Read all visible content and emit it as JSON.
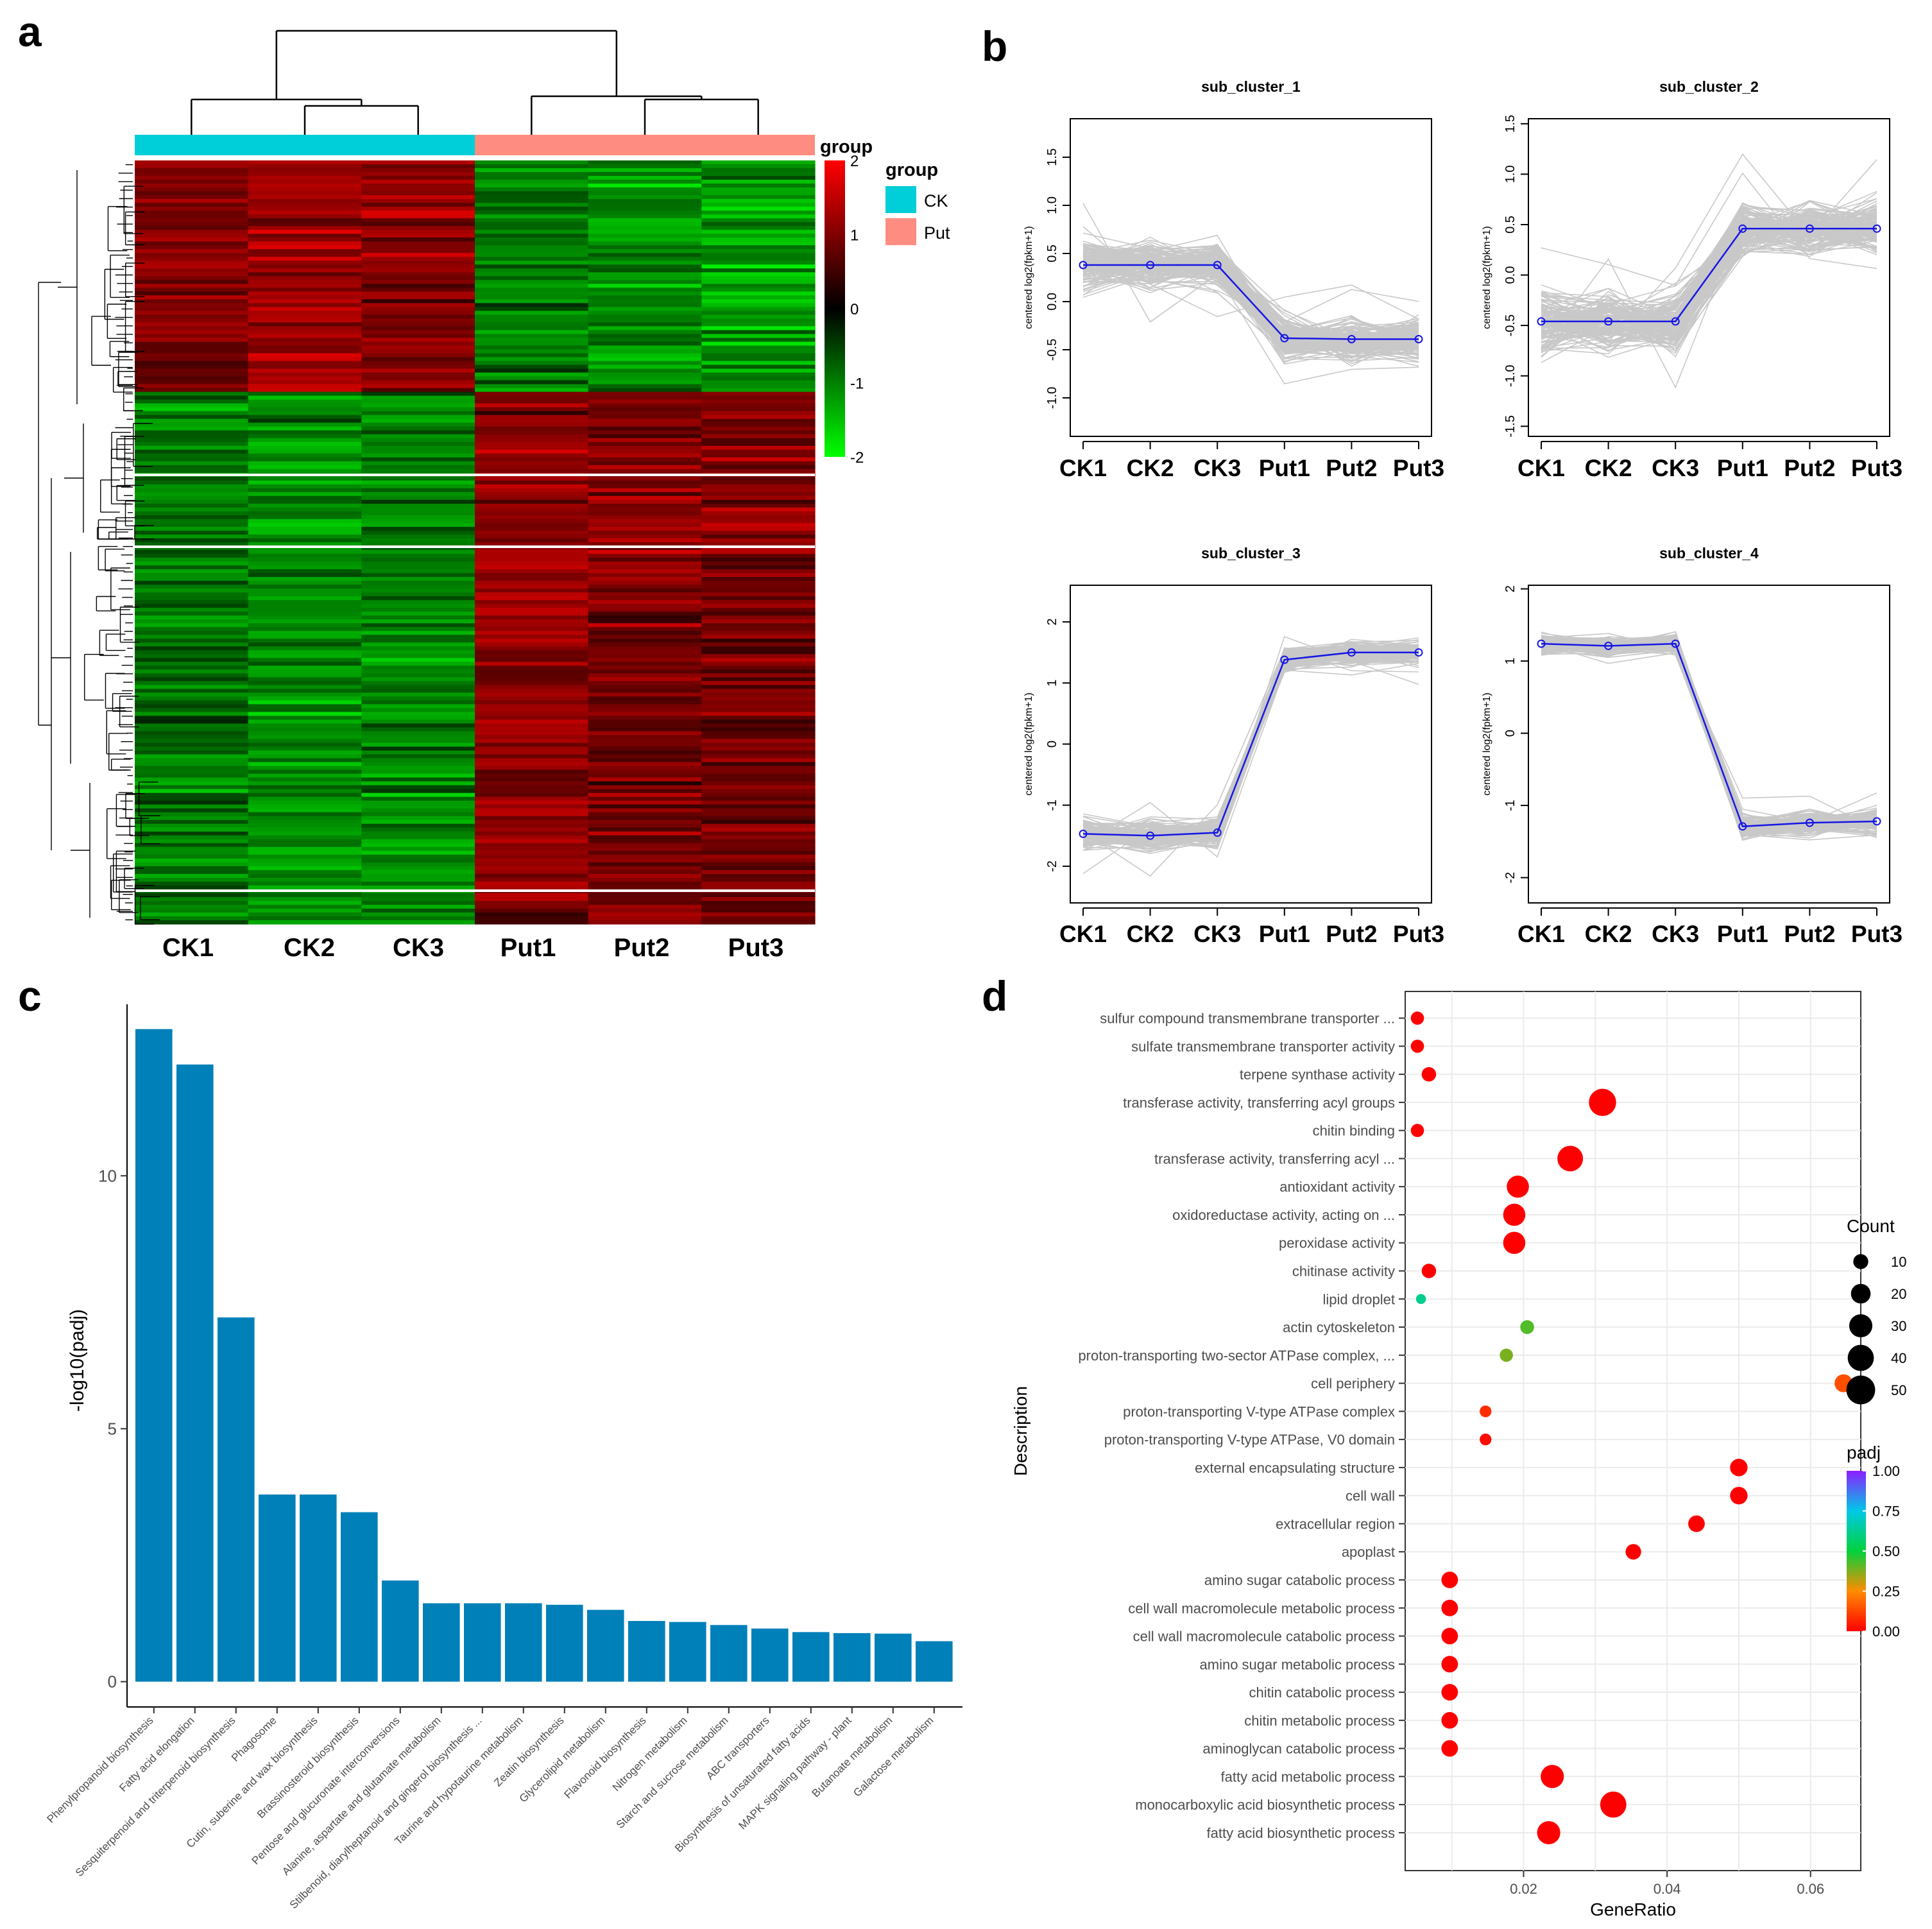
{
  "figure": {
    "panel_labels": [
      "a",
      "b",
      "c",
      "d"
    ],
    "colors": {
      "ck": "#00CED8",
      "put": "#FF8C80",
      "heat_high": "#FF0000",
      "heat_mid": "#000000",
      "heat_low": "#00FF00",
      "line_grey": "#C8C8C8",
      "line_blue": "#1515E6",
      "bar_blue": "#0080B9",
      "dot_grid_bg": "#ffffff",
      "grid_line": "#EBEBEB"
    }
  },
  "chart_data": [
    {
      "panel": "a",
      "type": "heatmap",
      "columns": [
        "CK1",
        "CK2",
        "CK3",
        "Put1",
        "Put2",
        "Put3"
      ],
      "group_legend": {
        "title": "group",
        "entries": [
          {
            "label": "CK",
            "color": "#00CED8"
          },
          {
            "label": "Put",
            "color": "#FF8C80"
          }
        ]
      },
      "color_scale": {
        "title": "group",
        "ticks": [
          2,
          1,
          0,
          -1,
          -2
        ],
        "range": [
          -2,
          2
        ]
      },
      "blocks": [
        {
          "rows": 60,
          "profile": [
            1.0,
            1.2,
            1.1,
            -1.0,
            -1.1,
            -1.2
          ]
        },
        {
          "rows": 12,
          "profile": [
            -0.9,
            -1.1,
            -1.0,
            1.0,
            0.9,
            1.0
          ]
        },
        {
          "rows": 30,
          "profile": [
            -0.9,
            -1.1,
            -1.0,
            1.1,
            1.0,
            1.0
          ]
        },
        {
          "rows": 90,
          "profile": [
            -0.9,
            -1.1,
            -1.0,
            1.1,
            0.9,
            0.9
          ]
        },
        {
          "rows": 6,
          "profile": [
            -1.0,
            -1.1,
            -1.0,
            0.6,
            1.1,
            0.9
          ]
        }
      ]
    },
    {
      "panel": "b",
      "type": "line",
      "x": [
        "CK1",
        "CK2",
        "CK3",
        "Put1",
        "Put2",
        "Put3"
      ],
      "ylabel": "centered log2(fpkm+1)",
      "subplots": [
        {
          "title": "sub_cluster_1",
          "ylim": [
            -1.4,
            1.9
          ],
          "yticks": [
            -1.0,
            -0.5,
            0.0,
            0.5,
            1.0,
            1.5
          ],
          "ytick_labels": [
            "-1.0",
            "-0.5",
            "0.0",
            "0.5",
            "1.0",
            "1.5"
          ],
          "mean": [
            0.38,
            0.38,
            0.38,
            -0.38,
            -0.39,
            -0.39
          ],
          "spread": [
            0.45,
            0.45,
            0.45,
            0.4,
            0.4,
            0.4
          ]
        },
        {
          "title": "sub_cluster_2",
          "ylim": [
            -1.6,
            1.55
          ],
          "yticks": [
            -1.5,
            -1.0,
            -0.5,
            0.0,
            0.5,
            1.0,
            1.5
          ],
          "ytick_labels": [
            "-1.5",
            "-1.0",
            "-0.5",
            "0.0",
            "0.5",
            "1.0",
            "1.5"
          ],
          "mean": [
            -0.46,
            -0.46,
            -0.46,
            0.46,
            0.46,
            0.46
          ],
          "spread": [
            0.6,
            0.6,
            0.6,
            0.5,
            0.5,
            0.5
          ]
        },
        {
          "title": "sub_cluster_3",
          "ylim": [
            -2.6,
            2.6
          ],
          "yticks": [
            -2,
            -1,
            0,
            1,
            2
          ],
          "ytick_labels": [
            "-2",
            "-1",
            "0",
            "1",
            "2"
          ],
          "mean": [
            -1.47,
            -1.5,
            -1.45,
            1.38,
            1.5,
            1.5
          ],
          "spread": [
            0.45,
            0.45,
            0.45,
            0.35,
            0.35,
            0.35
          ]
        },
        {
          "title": "sub_cluster_4",
          "ylim": [
            -2.35,
            2.05
          ],
          "yticks": [
            -2,
            -1,
            0,
            1,
            2
          ],
          "ytick_labels": [
            "-2",
            "-1",
            "0",
            "1",
            "2"
          ],
          "mean": [
            1.24,
            1.21,
            1.24,
            -1.29,
            -1.24,
            -1.22
          ],
          "spread": [
            0.25,
            0.25,
            0.25,
            0.3,
            0.3,
            0.3
          ]
        }
      ]
    },
    {
      "panel": "c",
      "type": "bar",
      "ylabel": "-log10(padj)",
      "ylim": [
        -0.5,
        13.2
      ],
      "yticks": [
        0,
        5,
        10
      ],
      "ytick_labels": [
        "0",
        "5",
        "10"
      ],
      "categories": [
        "Phenylpropanoid biosynthesis",
        "Fatty acid elongation",
        "Sesquiterpenoid and triterpenoid biosynthesis",
        "Phagosome",
        "Cutin, suberine and wax biosynthesis",
        "Brassinosteroid biosynthesis",
        "Pentose and glucuronate interconversions",
        "Alanine, aspartate and glutamate metabolism",
        "Stilbenoid, diarylheptanoid and gingerol biosynthesis ...",
        "Taurine and hypotaurine metabolism",
        "Zeatin biosynthesis",
        "Glycerolipid metabolism",
        "Flavonoid biosynthesis",
        "Nitrogen metabolism",
        "Starch and sucrose metabolism",
        "ABC transporters",
        "Biosynthesis of unsaturated fatty acids",
        "MAPK signaling pathway - plant",
        "Butanoate metabolism",
        "Galactose metabolism"
      ],
      "values": [
        12.9,
        12.2,
        7.2,
        3.7,
        3.7,
        3.35,
        2.0,
        1.55,
        1.55,
        1.55,
        1.52,
        1.42,
        1.2,
        1.18,
        1.12,
        1.05,
        0.98,
        0.96,
        0.95,
        0.8
      ]
    },
    {
      "panel": "d",
      "type": "scatter",
      "xlabel": "GeneRatio",
      "ylabel": "Description",
      "xlim": [
        0.0035,
        0.067
      ],
      "xticks": [
        0.02,
        0.04,
        0.06
      ],
      "xtick_labels": [
        "0.02",
        "0.04",
        "0.06"
      ],
      "size_legend": {
        "title": "Count",
        "values": [
          10,
          20,
          30,
          40,
          50
        ]
      },
      "color_legend": {
        "title": "padj",
        "ticks": [
          1.0,
          0.75,
          0.5,
          0.25,
          0.0
        ],
        "tick_labels": [
          "1.00",
          "0.75",
          "0.50",
          "0.25",
          "0.00"
        ]
      },
      "points": [
        {
          "term": "sulfur compound transmembrane transporter ...",
          "gene_ratio": 0.0052,
          "count": 7,
          "padj": 0.0
        },
        {
          "term": "sulfate transmembrane transporter activity",
          "gene_ratio": 0.0052,
          "count": 7,
          "padj": 0.0
        },
        {
          "term": "terpene synthase activity",
          "gene_ratio": 0.0068,
          "count": 9,
          "padj": 0.0
        },
        {
          "term": "transferase activity, transferring acyl groups",
          "gene_ratio": 0.031,
          "count": 44,
          "padj": 0.0
        },
        {
          "term": "chitin binding",
          "gene_ratio": 0.0052,
          "count": 7,
          "padj": 0.0
        },
        {
          "term": "transferase activity, transferring acyl ...",
          "gene_ratio": 0.0265,
          "count": 38,
          "padj": 0.0
        },
        {
          "term": "antioxidant activity",
          "gene_ratio": 0.0192,
          "count": 27,
          "padj": 0.0
        },
        {
          "term": "oxidoreductase activity, acting on ...",
          "gene_ratio": 0.0187,
          "count": 27,
          "padj": 0.0
        },
        {
          "term": "peroxidase activity",
          "gene_ratio": 0.0187,
          "count": 27,
          "padj": 0.0
        },
        {
          "term": "chitinase activity",
          "gene_ratio": 0.0068,
          "count": 9,
          "padj": 0.0
        },
        {
          "term": "lipid droplet",
          "gene_ratio": 0.0057,
          "count": 3,
          "padj": 0.62
        },
        {
          "term": "actin cytoskeleton",
          "gene_ratio": 0.0205,
          "count": 8,
          "padj": 0.42
        },
        {
          "term": "proton-transporting two-sector ATPase complex, ...",
          "gene_ratio": 0.0176,
          "count": 7,
          "padj": 0.38
        },
        {
          "term": "cell periphery",
          "gene_ratio": 0.0646,
          "count": 16,
          "padj": 0.14
        },
        {
          "term": "proton-transporting V-type ATPase complex",
          "gene_ratio": 0.0147,
          "count": 5,
          "padj": 0.08
        },
        {
          "term": "proton-transporting V-type ATPase, V0 domain",
          "gene_ratio": 0.0147,
          "count": 5,
          "padj": 0.02
        },
        {
          "term": "external encapsulating structure",
          "gene_ratio": 0.05,
          "count": 15,
          "padj": 0.0
        },
        {
          "term": "cell wall",
          "gene_ratio": 0.05,
          "count": 15,
          "padj": 0.0
        },
        {
          "term": "extracellular region",
          "gene_ratio": 0.0441,
          "count": 13,
          "padj": 0.0
        },
        {
          "term": "apoplast",
          "gene_ratio": 0.0353,
          "count": 11,
          "padj": 0.0
        },
        {
          "term": "amino sugar catabolic process",
          "gene_ratio": 0.0097,
          "count": 13,
          "padj": 0.0
        },
        {
          "term": "cell wall macromolecule metabolic process",
          "gene_ratio": 0.0097,
          "count": 13,
          "padj": 0.0
        },
        {
          "term": "cell wall macromolecule catabolic process",
          "gene_ratio": 0.0097,
          "count": 13,
          "padj": 0.0
        },
        {
          "term": "amino sugar metabolic process",
          "gene_ratio": 0.0097,
          "count": 13,
          "padj": 0.0
        },
        {
          "term": "chitin catabolic process",
          "gene_ratio": 0.0097,
          "count": 13,
          "padj": 0.0
        },
        {
          "term": "chitin metabolic process",
          "gene_ratio": 0.0097,
          "count": 13,
          "padj": 0.0
        },
        {
          "term": "aminoglycan catabolic process",
          "gene_ratio": 0.0097,
          "count": 13,
          "padj": 0.0
        },
        {
          "term": "fatty acid metabolic process",
          "gene_ratio": 0.024,
          "count": 30,
          "padj": 0.0
        },
        {
          "term": "monocarboxylic acid biosynthetic process",
          "gene_ratio": 0.0325,
          "count": 40,
          "padj": 0.0
        },
        {
          "term": "fatty acid biosynthetic process",
          "gene_ratio": 0.0235,
          "count": 30,
          "padj": 0.0
        }
      ]
    }
  ]
}
